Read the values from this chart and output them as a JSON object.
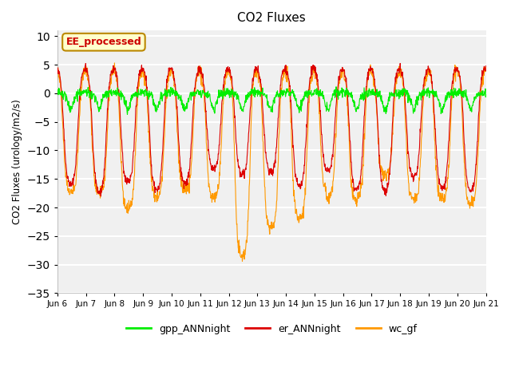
{
  "title": "CO2 Fluxes",
  "ylabel": "CO2 Fluxes (urology/m2/s)",
  "ylim": [
    -35,
    11
  ],
  "yticks": [
    -35,
    -30,
    -25,
    -20,
    -15,
    -10,
    -5,
    0,
    5,
    10
  ],
  "plot_bg_color": "#f0f0f0",
  "legend_labels": [
    "gpp_ANNnight",
    "er_ANNnight",
    "wc_gf"
  ],
  "legend_colors": [
    "#00ee00",
    "#dd0000",
    "#ff9900"
  ],
  "annotation_text": "EE_processed",
  "annotation_bg": "#ffffcc",
  "annotation_edge": "#bb8800",
  "line_colors": {
    "gpp": "#00ee00",
    "er": "#dd0000",
    "wc": "#ff9900"
  },
  "n_points": 1440,
  "xticklabels": [
    "Jun 6",
    "Jun 7",
    "Jun 8",
    "Jun 9",
    "Jun 10",
    "Jun 11",
    "Jun 12",
    "Jun 13",
    "Jun 14",
    "Jun 15",
    "Jun 16",
    "Jun 17",
    "Jun 18",
    "Jun 19",
    "Jun 20",
    "Jun 21"
  ]
}
